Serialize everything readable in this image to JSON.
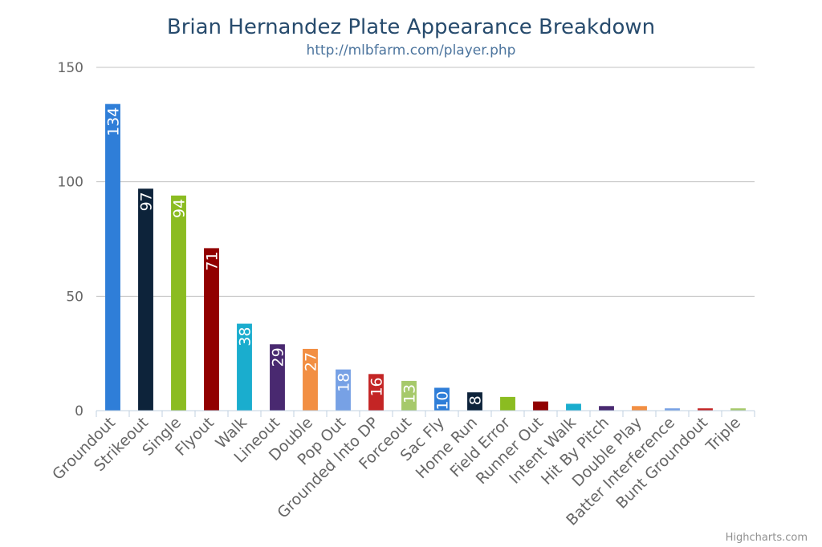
{
  "chart_data": {
    "type": "bar",
    "title": "Brian Hernandez Plate Appearance Breakdown",
    "subtitle": "http://mlbfarm.com/player.php",
    "credits": "Highcharts.com",
    "ylim": [
      0,
      150
    ],
    "yticks": [
      0,
      50,
      100,
      150
    ],
    "grid": true,
    "categories": [
      "Groundout",
      "Strikeout",
      "Single",
      "Flyout",
      "Walk",
      "Lineout",
      "Double",
      "Pop Out",
      "Grounded Into DP",
      "Forceout",
      "Sac Fly",
      "Home Run",
      "Field Error",
      "Runner Out",
      "Intent Walk",
      "Hit By Pitch",
      "Double Play",
      "Batter Interference",
      "Bunt Groundout",
      "Triple"
    ],
    "values": [
      134,
      97,
      94,
      71,
      38,
      29,
      27,
      18,
      16,
      13,
      10,
      8,
      6,
      4,
      3,
      2,
      2,
      1,
      1,
      1
    ],
    "data_labels": [
      "134",
      "97",
      "94",
      "71",
      "38",
      "29",
      "27",
      "18",
      "16",
      "13",
      "10",
      "8",
      "",
      "",
      "",
      "",
      "",
      "",
      "",
      ""
    ],
    "colors": [
      "#2f7ed8",
      "#0d233a",
      "#8bbc21",
      "#910000",
      "#1aadce",
      "#492970",
      "#f28f43",
      "#77a1e5",
      "#c42525",
      "#a6c96a",
      "#2f7ed8",
      "#0d233a",
      "#8bbc21",
      "#910000",
      "#1aadce",
      "#492970",
      "#f28f43",
      "#77a1e5",
      "#c42525",
      "#a6c96a"
    ]
  }
}
